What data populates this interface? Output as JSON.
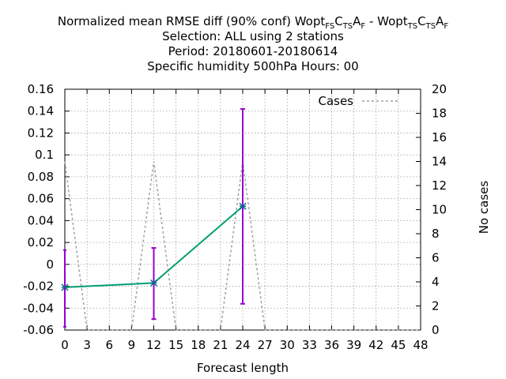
{
  "chart_data": {
    "type": "line",
    "title_lines": [
      {
        "parts": [
          {
            "t": "Normalized mean RMSE diff (90% conf) Wopt"
          },
          {
            "t": "FS",
            "sub": true
          },
          {
            "t": "C"
          },
          {
            "t": "TS",
            "sub": true
          },
          {
            "t": "A"
          },
          {
            "t": "F",
            "sub": true
          },
          {
            "t": " - Wopt"
          },
          {
            "t": "TS",
            "sub": true
          },
          {
            "t": "C"
          },
          {
            "t": "TS",
            "sub": true
          },
          {
            "t": "A"
          },
          {
            "t": "F",
            "sub": true
          }
        ]
      },
      {
        "parts": [
          {
            "t": "Selection: ALL using     2 stations"
          }
        ]
      },
      {
        "parts": [
          {
            "t": "Period: 20180601-20180614"
          }
        ]
      },
      {
        "parts": [
          {
            "t": "Specific humidity 500hPa   Hours:  00"
          }
        ]
      }
    ],
    "xlabel": "Forecast length",
    "ylabel_right": "No cases",
    "x_ticks": [
      "0",
      "3",
      "6",
      "9",
      "12",
      "15",
      "18",
      "21",
      "24",
      "27",
      "30",
      "33",
      "36",
      "39",
      "42",
      "45",
      "48"
    ],
    "y_ticks": [
      "0.16",
      "0.14",
      "0.12",
      "0.1",
      "0.08",
      "0.06",
      "0.04",
      "0.02",
      "0",
      "-0.02",
      "-0.04",
      "-0.06"
    ],
    "y2_ticks": [
      "20",
      "18",
      "16",
      "14",
      "12",
      "10",
      "8",
      "6",
      "4",
      "2",
      "0"
    ],
    "xlim": [
      0,
      48
    ],
    "ylim": [
      -0.06,
      0.16
    ],
    "y2lim": [
      0,
      20
    ],
    "grid": true,
    "legend": {
      "position": "top-right",
      "entries": [
        "Cases"
      ]
    },
    "main_series": {
      "x": [
        0,
        12,
        24
      ],
      "y": [
        -0.021,
        -0.017,
        0.053
      ],
      "err_low": [
        -0.057,
        -0.05,
        -0.036
      ],
      "err_high": [
        0.013,
        0.015,
        0.142
      ],
      "color": "#009e73",
      "error_color": "#9400d3"
    },
    "cases_series": {
      "name": "Cases",
      "x": [
        0,
        3,
        9,
        12,
        15,
        21,
        24,
        27,
        48
      ],
      "y": [
        14,
        0,
        0,
        14,
        0,
        0,
        14,
        0,
        0
      ],
      "color": "#a0a0a0"
    }
  }
}
